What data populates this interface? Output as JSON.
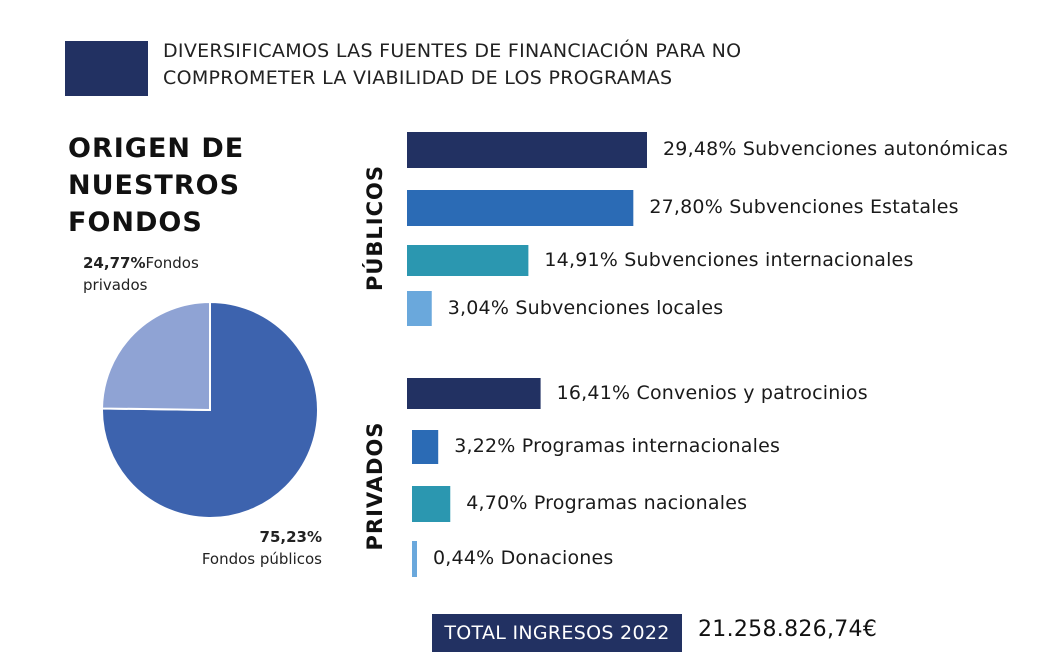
{
  "header": {
    "lines": [
      "DIVERSIFICAMOS LAS FUENTES DE FINANCIACIÓN PARA NO",
      "COMPROMETER LA VIABILIDAD DE LOS PROGRAMAS"
    ],
    "block_color": "#223162"
  },
  "title_lines": [
    "ORIGEN DE",
    "NUESTROS",
    "FONDOS"
  ],
  "chart_data": [
    {
      "type": "pie",
      "slices": [
        {
          "value": 75.23,
          "pct_label": "75,23%",
          "name": "Fondos públicos",
          "color": "#3d63ae"
        },
        {
          "value": 24.77,
          "pct_label": "24,77%",
          "name_lines": [
            "Fondos",
            "privados"
          ],
          "color": "#8fa3d4"
        }
      ]
    },
    {
      "type": "bar",
      "orientation": "horizontal",
      "groups": [
        {
          "name": "PÚBLICOS",
          "bars": [
            {
              "value": 29.48,
              "label": "29,48% Subvenciones autonómicas",
              "color": "#223162"
            },
            {
              "value": 27.8,
              "label": "27,80% Subvenciones Estatales",
              "color": "#2b6bb5"
            },
            {
              "value": 14.91,
              "label": "14,91% Subvenciones internacionales",
              "color": "#2b97b0"
            },
            {
              "value": 3.04,
              "label": "3,04% Subvenciones locales",
              "color": "#6aa8dc"
            }
          ]
        },
        {
          "name": "PRIVADOS",
          "bars": [
            {
              "value": 16.41,
              "label": "16,41% Convenios y patrocinios",
              "color": "#223162"
            },
            {
              "value": 3.22,
              "label": "3,22% Programas internacionales",
              "color": "#2b6bb5"
            },
            {
              "value": 4.7,
              "label": "4,70% Programas nacionales",
              "color": "#2b97b0"
            },
            {
              "value": 0.44,
              "label": "0,44% Donaciones",
              "color": "#6aa8dc"
            }
          ]
        }
      ]
    }
  ],
  "total": {
    "label": "TOTAL INGRESOS 2022",
    "value": "21.258.826,74€"
  }
}
